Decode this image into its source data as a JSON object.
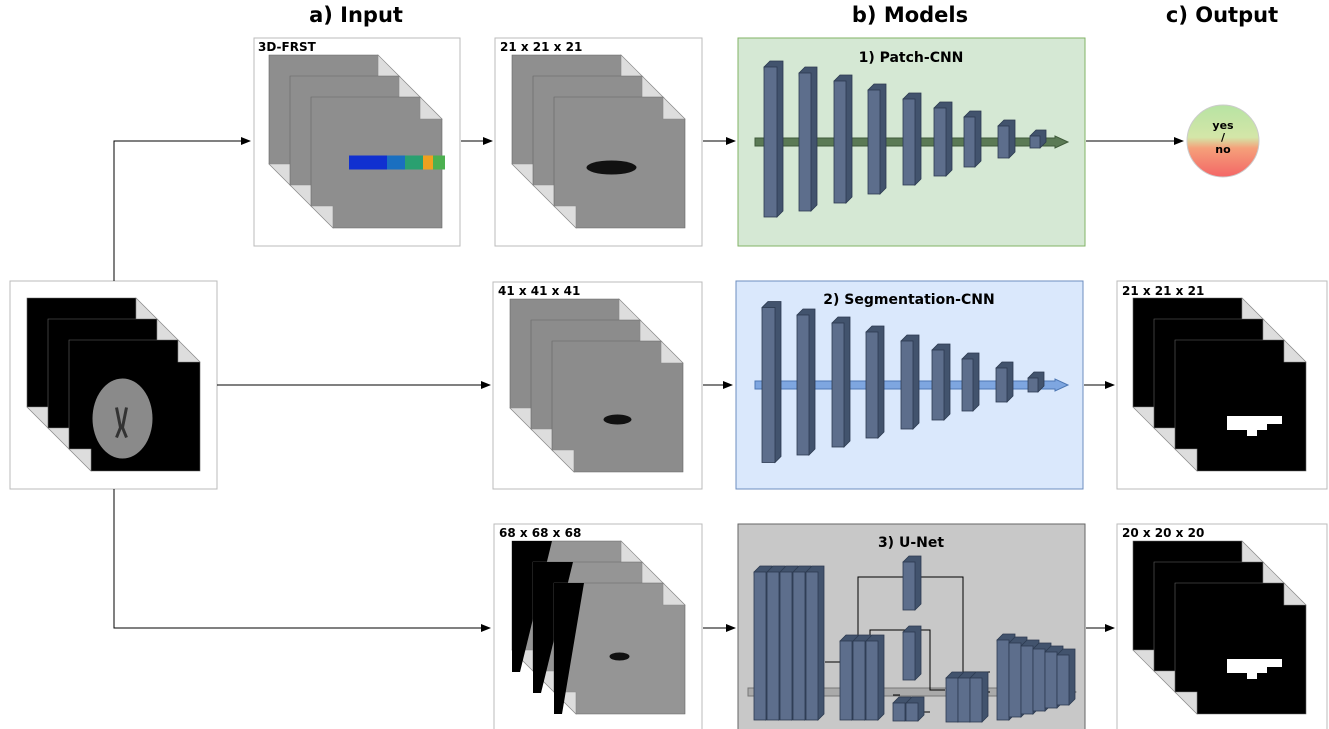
{
  "headers": [
    "a) Input",
    "b) Models",
    "c) Output"
  ],
  "input": {
    "label": "3D-FRST"
  },
  "patches": [
    {
      "label": "21 x 21 x 21"
    },
    {
      "label": "41 x 41 x 41"
    },
    {
      "label": "68 x 68 x 68"
    }
  ],
  "models": [
    {
      "title": "1) Patch-CNN"
    },
    {
      "title": "2) Segmentation-CNN"
    },
    {
      "title": "3) U-Net"
    }
  ],
  "outputs": {
    "classifier": [
      "yes",
      "/",
      "no"
    ],
    "segmentations": [
      "21 x 21 x 21",
      "20 x 20 x 20"
    ]
  }
}
